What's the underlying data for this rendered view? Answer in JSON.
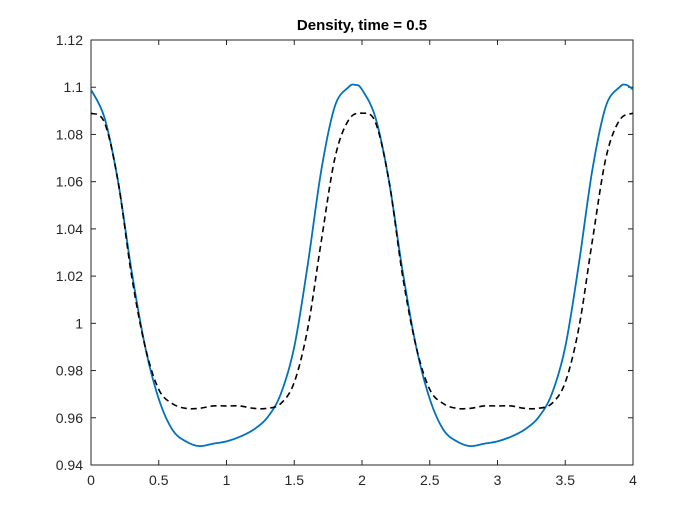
{
  "chart_data": {
    "type": "line",
    "title": "Density, time = 0.5",
    "xlabel": "",
    "ylabel": "",
    "xlim": [
      0,
      4
    ],
    "ylim": [
      0.94,
      1.12
    ],
    "xticks": [
      0,
      0.5,
      1,
      1.5,
      2,
      2.5,
      3,
      3.5,
      4
    ],
    "xtick_labels": [
      "0",
      "0.5",
      "1",
      "1.5",
      "2",
      "2.5",
      "3",
      "3.5",
      "4"
    ],
    "yticks": [
      0.94,
      0.96,
      0.98,
      1.0,
      1.02,
      1.04,
      1.06,
      1.08,
      1.1,
      1.12
    ],
    "ytick_labels": [
      "0.94",
      "0.96",
      "0.98",
      "1",
      "1.02",
      "1.04",
      "1.06",
      "1.08",
      "1.1",
      "1.12"
    ],
    "grid": false,
    "series": [
      {
        "style": "solid",
        "color": "#0072BD",
        "x": [
          0,
          0.1,
          0.2,
          0.3,
          0.4,
          0.5,
          0.6,
          0.7,
          0.8,
          0.9,
          1.0,
          1.1,
          1.2,
          1.3,
          1.4,
          1.5,
          1.6,
          1.7,
          1.8,
          1.9,
          1.95,
          2.0,
          2.1,
          2.2,
          2.3,
          2.4,
          2.5,
          2.6,
          2.7,
          2.8,
          2.9,
          3.0,
          3.1,
          3.2,
          3.3,
          3.4,
          3.5,
          3.6,
          3.7,
          3.8,
          3.9,
          3.95,
          4.0
        ],
        "y": [
          1.099,
          1.087,
          1.06,
          1.022,
          0.99,
          0.968,
          0.955,
          0.95,
          0.948,
          0.949,
          0.95,
          0.952,
          0.955,
          0.96,
          0.97,
          0.99,
          1.025,
          1.065,
          1.092,
          1.1,
          1.101,
          1.099,
          1.087,
          1.06,
          1.022,
          0.99,
          0.968,
          0.955,
          0.95,
          0.948,
          0.949,
          0.95,
          0.952,
          0.955,
          0.96,
          0.97,
          0.99,
          1.025,
          1.065,
          1.092,
          1.1,
          1.101,
          1.099
        ]
      },
      {
        "style": "dashed",
        "color": "#000000",
        "x": [
          0,
          0.1,
          0.2,
          0.3,
          0.4,
          0.5,
          0.6,
          0.7,
          0.8,
          0.9,
          1.0,
          1.1,
          1.2,
          1.3,
          1.4,
          1.5,
          1.6,
          1.7,
          1.8,
          1.9,
          2.0,
          2.1,
          2.2,
          2.3,
          2.4,
          2.5,
          2.6,
          2.7,
          2.8,
          2.9,
          3.0,
          3.1,
          3.2,
          3.3,
          3.4,
          3.5,
          3.6,
          3.7,
          3.8,
          3.9,
          4.0
        ],
        "y": [
          1.089,
          1.085,
          1.06,
          1.02,
          0.99,
          0.972,
          0.966,
          0.964,
          0.964,
          0.965,
          0.965,
          0.965,
          0.964,
          0.964,
          0.966,
          0.975,
          0.998,
          1.035,
          1.07,
          1.086,
          1.089,
          1.085,
          1.06,
          1.02,
          0.99,
          0.972,
          0.966,
          0.964,
          0.964,
          0.965,
          0.965,
          0.965,
          0.964,
          0.964,
          0.966,
          0.975,
          0.998,
          1.035,
          1.07,
          1.086,
          1.089
        ]
      }
    ]
  }
}
